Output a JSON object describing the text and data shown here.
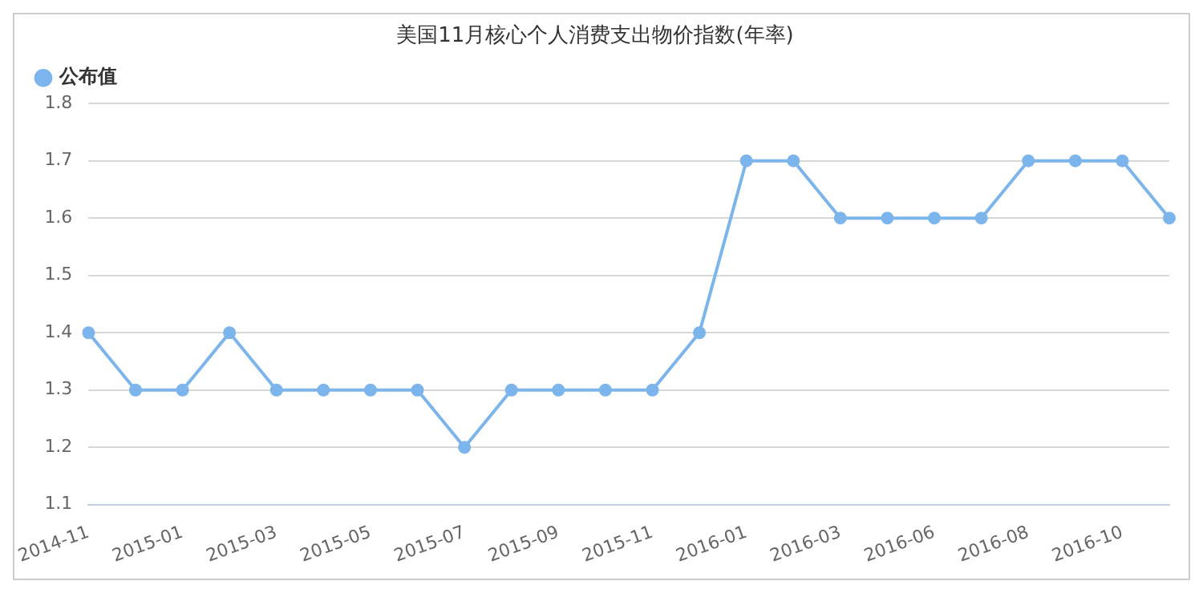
{
  "chart_data": {
    "type": "line",
    "title": "美国11月核心个人消费支出物价指数(年率)",
    "categories": [
      "2014-11",
      null,
      "2015-01",
      null,
      "2015-03",
      null,
      "2015-05",
      null,
      "2015-07",
      null,
      "2015-09",
      null,
      "2015-11",
      null,
      "2016-01",
      null,
      "2016-03",
      null,
      "2016-06",
      null,
      "2016-08",
      null,
      "2016-10",
      null
    ],
    "series": [
      {
        "name": "公布值",
        "color": "#7cb5ec",
        "values": [
          1.4,
          1.3,
          1.3,
          1.4,
          1.3,
          1.3,
          1.3,
          1.3,
          1.2,
          1.3,
          1.3,
          1.3,
          1.3,
          1.4,
          1.7,
          1.7,
          1.6,
          1.6,
          1.6,
          1.6,
          1.7,
          1.7,
          1.7,
          1.6
        ]
      }
    ],
    "ylim": [
      1.1,
      1.8
    ],
    "yticks": [
      1.1,
      1.2,
      1.3,
      1.4,
      1.5,
      1.6,
      1.7,
      1.8
    ],
    "grid": "y",
    "legend": "top left",
    "marker": "circle",
    "line_style": "solid"
  }
}
